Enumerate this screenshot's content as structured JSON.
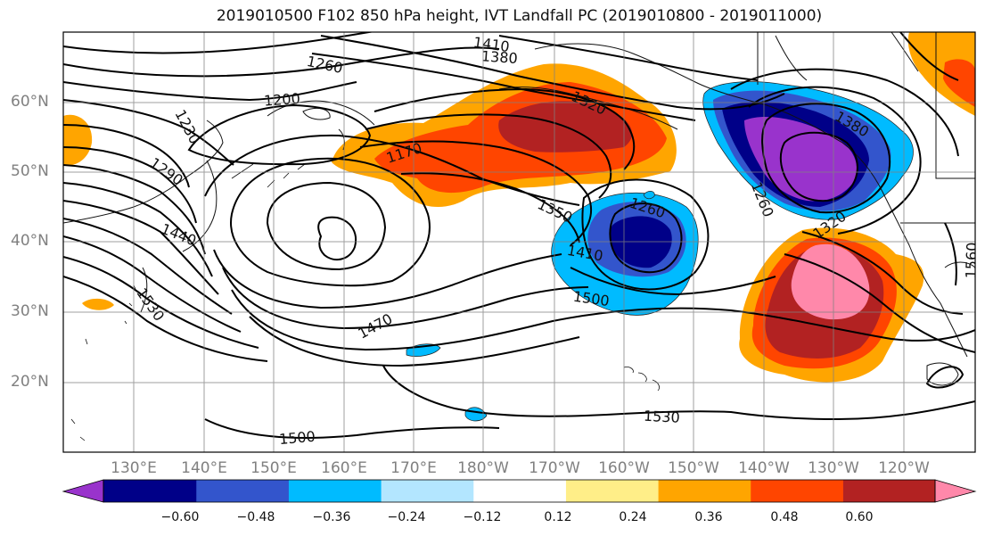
{
  "title": "2019010500 F102 850 hPa height, IVT Landfall PC (2019010800 - 2019011000)",
  "lat_labels": [
    "60°N",
    "50°N",
    "40°N",
    "30°N",
    "20°N"
  ],
  "lon_labels": [
    "130°E",
    "140°E",
    "150°E",
    "160°E",
    "170°E",
    "180°W",
    "170°W",
    "160°W",
    "150°W",
    "140°W",
    "130°W",
    "120°W"
  ],
  "contour_labels": {
    "c1410": "1410",
    "c1380a": "1380",
    "c1260a": "1260",
    "c1200": "1200",
    "c1230": "1230",
    "c1320": "1320",
    "c1170": "1170",
    "c1290": "1290",
    "c1380b": "1380",
    "c1350": "1350",
    "c1260b": "1260",
    "c1260c": "1260",
    "c1320b": "1320",
    "c1440": "1440",
    "c1410b": "1410",
    "c1500a": "1500",
    "c1470": "1470",
    "c1530a": "1530",
    "c1530b": "1530",
    "c1500b": "1500",
    "c1560": "1560"
  },
  "colorbar": {
    "ticks": [
      "−0.60",
      "−0.48",
      "−0.36",
      "−0.24",
      "−0.12",
      "0.12",
      "0.24",
      "0.36",
      "0.48",
      "0.60"
    ],
    "colors": [
      "#9933cc",
      "#000088",
      "#3355cc",
      "#00bbff",
      "#b3e6ff",
      "#ffffff",
      "#ffee88",
      "#ffa500",
      "#ff4500",
      "#b22222",
      "#ff88aa"
    ]
  }
}
